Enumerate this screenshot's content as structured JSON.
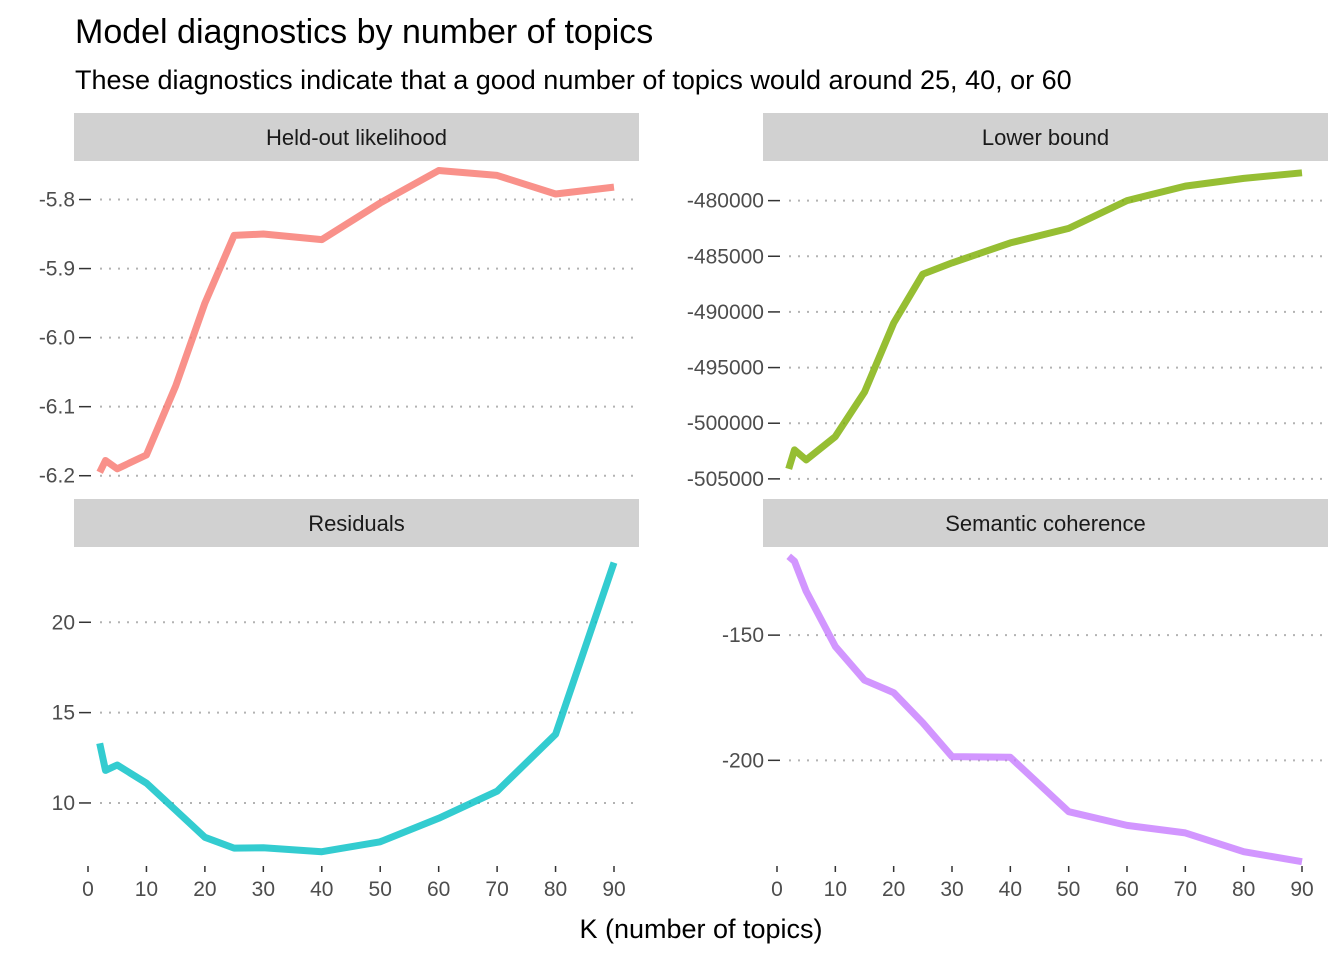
{
  "title": "Model diagnostics by number of topics",
  "subtitle": "These diagnostics indicate that a good number of topics would around 25, 40, or 60",
  "xlabel": "K (number of topics)",
  "chart_data": [
    {
      "type": "line",
      "panel": "Held-out likelihood",
      "color": "#F8766D",
      "x": [
        2,
        3,
        5,
        10,
        15,
        20,
        25,
        30,
        40,
        50,
        60,
        70,
        80,
        90
      ],
      "y": [
        -6.195,
        -6.178,
        -6.19,
        -6.17,
        -6.07,
        -5.95,
        -5.852,
        -5.85,
        -5.858,
        -5.805,
        -5.758,
        -5.765,
        -5.792,
        -5.782
      ],
      "xticks": [
        0,
        10,
        20,
        30,
        40,
        50,
        60,
        70,
        80,
        90
      ],
      "yticks": [
        -6.2,
        -6.1,
        -6.0,
        -5.9,
        -5.8
      ],
      "ytick_labels": [
        "-6.2",
        "-6.1",
        "-6.0",
        "-5.9",
        "-5.8"
      ],
      "xlim": [
        0,
        90
      ],
      "ylim": [
        -6.212,
        -5.75
      ],
      "grid": "horizontal dotted"
    },
    {
      "type": "line",
      "panel": "Lower bound",
      "color": "#7CAE00",
      "x": [
        2,
        3,
        5,
        10,
        15,
        20,
        25,
        30,
        40,
        50,
        60,
        70,
        80,
        90
      ],
      "y": [
        -504100,
        -502400,
        -503300,
        -501200,
        -497200,
        -491000,
        -486600,
        -485600,
        -483800,
        -482500,
        -480000,
        -478700,
        -478000,
        -477500
      ],
      "xticks": [
        0,
        10,
        20,
        30,
        40,
        50,
        60,
        70,
        80,
        90
      ],
      "yticks": [
        -505000,
        -500000,
        -495000,
        -490000,
        -485000,
        -480000
      ],
      "ytick_labels": [
        "-505000",
        "-500000",
        "-495000",
        "-490000",
        "-485000",
        "-480000"
      ],
      "xlim": [
        0,
        90
      ],
      "ylim": [
        -506000,
        -476800
      ],
      "grid": "horizontal dotted"
    },
    {
      "type": "line",
      "panel": "Residuals",
      "color": "#00BFC4",
      "x": [
        2,
        3,
        5,
        10,
        15,
        20,
        25,
        30,
        40,
        50,
        60,
        70,
        80,
        90
      ],
      "y": [
        13.3,
        11.8,
        12.1,
        11.1,
        9.6,
        8.1,
        7.5,
        7.52,
        7.3,
        7.85,
        9.15,
        10.65,
        13.8,
        23.3
      ],
      "xticks": [
        0,
        10,
        20,
        30,
        40,
        50,
        60,
        70,
        80,
        90
      ],
      "yticks": [
        10,
        15,
        20
      ],
      "ytick_labels": [
        "10",
        "15",
        "20"
      ],
      "xlim": [
        0,
        90
      ],
      "ylim": [
        6.4,
        24.0
      ],
      "grid": "horizontal dotted"
    },
    {
      "type": "line",
      "panel": "Semantic coherence",
      "color": "#C77CFF",
      "x": [
        2,
        3,
        5,
        10,
        15,
        20,
        25,
        30,
        40,
        50,
        60,
        70,
        80,
        90
      ],
      "y": [
        -118.5,
        -120.5,
        -132.5,
        -154.5,
        -168,
        -173,
        -185,
        -198.5,
        -198.8,
        -220.5,
        -226,
        -229,
        -236.5,
        -240.5
      ],
      "xticks": [
        0,
        10,
        20,
        30,
        40,
        50,
        60,
        70,
        80,
        90
      ],
      "yticks": [
        -200,
        -150
      ],
      "ytick_labels": [
        "-200",
        "-150"
      ],
      "xlim": [
        0,
        90
      ],
      "ylim": [
        -243,
        -116
      ],
      "grid": "horizontal dotted"
    }
  ]
}
